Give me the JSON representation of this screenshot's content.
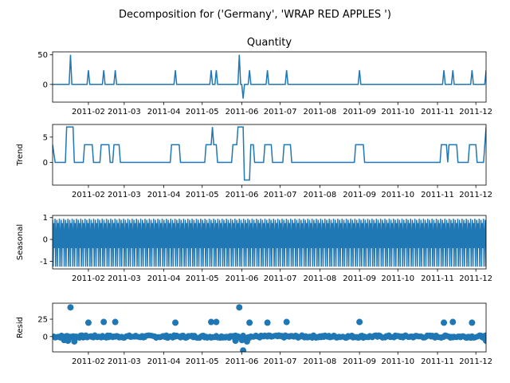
{
  "suptitle": "Decomposition for ('Germany', 'WRAP RED APPLES ')",
  "line_color": "#1f77b4",
  "x_tick_labels": [
    "2011-02",
    "2011-03",
    "2011-04",
    "2011-05",
    "2011-06",
    "2011-07",
    "2011-08",
    "2011-09",
    "2011-10",
    "2011-11",
    "2011-12"
  ],
  "chart_data": [
    {
      "type": "line",
      "title": "Quantity",
      "ylabel": "",
      "ylim": [
        -30,
        55
      ],
      "yticks": [
        0,
        50
      ],
      "x_range": [
        "2011-01-04",
        "2011-12-09"
      ],
      "baseline": 0,
      "spikes": [
        {
          "x": "2011-01-18",
          "y": 50
        },
        {
          "x": "2011-02-01",
          "y": 24
        },
        {
          "x": "2011-02-13",
          "y": 24
        },
        {
          "x": "2011-02-22",
          "y": 24
        },
        {
          "x": "2011-04-10",
          "y": 24
        },
        {
          "x": "2011-05-08",
          "y": 24
        },
        {
          "x": "2011-05-12",
          "y": 24
        },
        {
          "x": "2011-05-30",
          "y": 50
        },
        {
          "x": "2011-06-02",
          "y": -24
        },
        {
          "x": "2011-06-07",
          "y": 24
        },
        {
          "x": "2011-06-21",
          "y": 24
        },
        {
          "x": "2011-07-06",
          "y": 24
        },
        {
          "x": "2011-09-01",
          "y": 24
        },
        {
          "x": "2011-11-06",
          "y": 24
        },
        {
          "x": "2011-11-13",
          "y": 24
        },
        {
          "x": "2011-11-28",
          "y": 24
        },
        {
          "x": "2011-12-09",
          "y": 24
        }
      ]
    },
    {
      "type": "line",
      "title": "",
      "ylabel": "Trend",
      "ylim": [
        -4.5,
        7.5
      ],
      "yticks": [
        0,
        5
      ],
      "x_range": [
        "2011-01-04",
        "2011-12-09"
      ],
      "points": [
        [
          "2011-01-04",
          3.5
        ],
        [
          "2011-01-06",
          0
        ],
        [
          "2011-01-14",
          0
        ],
        [
          "2011-01-15",
          7
        ],
        [
          "2011-01-20",
          7
        ],
        [
          "2011-01-21",
          0
        ],
        [
          "2011-01-28",
          0
        ],
        [
          "2011-01-29",
          3.5
        ],
        [
          "2011-02-04",
          3.5
        ],
        [
          "2011-02-05",
          0
        ],
        [
          "2011-02-10",
          0
        ],
        [
          "2011-02-11",
          3.5
        ],
        [
          "2011-02-17",
          3.5
        ],
        [
          "2011-02-18",
          0
        ],
        [
          "2011-02-20",
          0
        ],
        [
          "2011-02-21",
          3.5
        ],
        [
          "2011-02-25",
          3.5
        ],
        [
          "2011-02-26",
          0
        ],
        [
          "2011-04-06",
          0
        ],
        [
          "2011-04-07",
          3.5
        ],
        [
          "2011-04-13",
          3.5
        ],
        [
          "2011-04-14",
          0
        ],
        [
          "2011-05-03",
          0
        ],
        [
          "2011-05-04",
          3.5
        ],
        [
          "2011-05-08",
          3.5
        ],
        [
          "2011-05-09",
          7
        ],
        [
          "2011-05-10",
          3.5
        ],
        [
          "2011-05-12",
          3.5
        ],
        [
          "2011-05-13",
          0
        ],
        [
          "2011-05-24",
          0
        ],
        [
          "2011-05-25",
          3.5
        ],
        [
          "2011-05-28",
          3.5
        ],
        [
          "2011-05-29",
          7
        ],
        [
          "2011-06-02",
          7
        ],
        [
          "2011-06-03",
          -3.5
        ],
        [
          "2011-06-07",
          -3.5
        ],
        [
          "2011-06-08",
          3.5
        ],
        [
          "2011-06-10",
          3.5
        ],
        [
          "2011-06-11",
          0
        ],
        [
          "2011-06-18",
          0
        ],
        [
          "2011-06-19",
          3.5
        ],
        [
          "2011-06-24",
          3.5
        ],
        [
          "2011-06-25",
          0
        ],
        [
          "2011-07-03",
          0
        ],
        [
          "2011-07-04",
          3.5
        ],
        [
          "2011-07-09",
          3.5
        ],
        [
          "2011-07-10",
          0
        ],
        [
          "2011-08-28",
          0
        ],
        [
          "2011-08-29",
          3.5
        ],
        [
          "2011-09-04",
          3.5
        ],
        [
          "2011-09-05",
          0
        ],
        [
          "2011-11-03",
          0
        ],
        [
          "2011-11-04",
          3.5
        ],
        [
          "2011-11-08",
          3.5
        ],
        [
          "2011-11-09",
          0
        ],
        [
          "2011-11-10",
          3.5
        ],
        [
          "2011-11-16",
          3.5
        ],
        [
          "2011-11-17",
          0
        ],
        [
          "2011-11-25",
          0
        ],
        [
          "2011-11-26",
          3.5
        ],
        [
          "2011-12-01",
          3.5
        ],
        [
          "2011-12-02",
          0
        ],
        [
          "2011-12-07",
          0
        ],
        [
          "2011-12-09",
          7
        ]
      ]
    },
    {
      "type": "line",
      "title": "",
      "ylabel": "Seasonal",
      "ylim": [
        -1.35,
        1.1
      ],
      "yticks": [
        -1,
        0,
        1
      ],
      "x_range": [
        "2011-01-04",
        "2011-12-09"
      ],
      "period_days": 3.35,
      "cycle_values": [
        0.9,
        -1.25,
        0.75,
        -0.4,
        0.95,
        -1.25,
        0.35
      ]
    },
    {
      "type": "scatter",
      "title": "",
      "ylabel": "Resid",
      "ylim": [
        -22,
        48
      ],
      "yticks": [
        0,
        25
      ],
      "x_range": [
        "2011-01-04",
        "2011-12-09"
      ],
      "points": [
        [
          "2011-01-18",
          42
        ],
        [
          "2011-02-01",
          20
        ],
        [
          "2011-02-13",
          21
        ],
        [
          "2011-02-22",
          21
        ],
        [
          "2011-04-10",
          20
        ],
        [
          "2011-05-08",
          21
        ],
        [
          "2011-05-12",
          21
        ],
        [
          "2011-05-30",
          42
        ],
        [
          "2011-06-02",
          -20
        ],
        [
          "2011-06-07",
          20
        ],
        [
          "2011-06-21",
          20
        ],
        [
          "2011-07-06",
          21
        ],
        [
          "2011-09-01",
          21
        ],
        [
          "2011-11-06",
          20
        ],
        [
          "2011-11-13",
          21
        ],
        [
          "2011-11-28",
          20
        ],
        [
          "2011-01-13",
          -5
        ],
        [
          "2011-01-16",
          -6
        ],
        [
          "2011-01-21",
          -7
        ],
        [
          "2011-06-05",
          -7
        ],
        [
          "2011-05-27",
          -6
        ],
        [
          "2011-06-01",
          -5
        ],
        [
          "2011-12-09",
          -6
        ]
      ]
    }
  ]
}
